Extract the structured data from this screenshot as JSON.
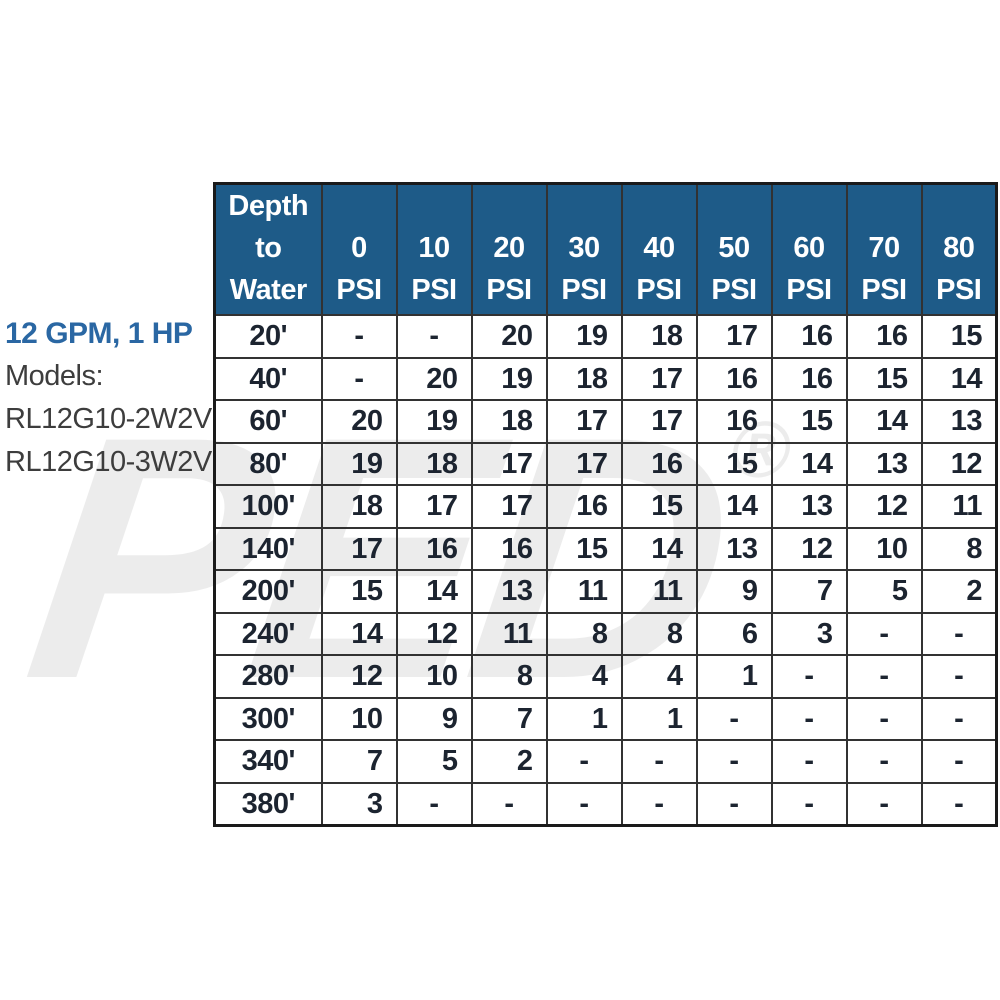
{
  "side_label": {
    "spec": "12 GPM, 1 HP",
    "models_label": "Models:",
    "model1": "RL12G10-2W2V",
    "model2": "RL12G10-3W2V"
  },
  "watermark": {
    "text": "PED",
    "registered": "®"
  },
  "colors": {
    "header_bg": "#1e5b88",
    "header_text": "#ffffff",
    "grid_line": "#323232",
    "cell_text": "#1c2430",
    "spec_text": "#2a67a3",
    "model_text": "#3d3d3d",
    "background": "#ffffff"
  },
  "chart_data": {
    "type": "table",
    "row_header": "Depth to Water",
    "row_header_lines": [
      "Depth",
      "to",
      "Water"
    ],
    "columns": [
      {
        "pressure": "0",
        "unit": "PSI"
      },
      {
        "pressure": "10",
        "unit": "PSI"
      },
      {
        "pressure": "20",
        "unit": "PSI"
      },
      {
        "pressure": "30",
        "unit": "PSI"
      },
      {
        "pressure": "40",
        "unit": "PSI"
      },
      {
        "pressure": "50",
        "unit": "PSI"
      },
      {
        "pressure": "60",
        "unit": "PSI"
      },
      {
        "pressure": "70",
        "unit": "PSI"
      },
      {
        "pressure": "80",
        "unit": "PSI"
      }
    ],
    "rows": [
      {
        "depth": "20'",
        "values": [
          "-",
          "-",
          "20",
          "19",
          "18",
          "17",
          "16",
          "16",
          "15"
        ]
      },
      {
        "depth": "40'",
        "values": [
          "-",
          "20",
          "19",
          "18",
          "17",
          "16",
          "16",
          "15",
          "14"
        ]
      },
      {
        "depth": "60'",
        "values": [
          "20",
          "19",
          "18",
          "17",
          "17",
          "16",
          "15",
          "14",
          "13"
        ]
      },
      {
        "depth": "80'",
        "values": [
          "19",
          "18",
          "17",
          "17",
          "16",
          "15",
          "14",
          "13",
          "12"
        ]
      },
      {
        "depth": "100'",
        "values": [
          "18",
          "17",
          "17",
          "16",
          "15",
          "14",
          "13",
          "12",
          "11"
        ]
      },
      {
        "depth": "140'",
        "values": [
          "17",
          "16",
          "16",
          "15",
          "14",
          "13",
          "12",
          "10",
          "8"
        ]
      },
      {
        "depth": "200'",
        "values": [
          "15",
          "14",
          "13",
          "11",
          "11",
          "9",
          "7",
          "5",
          "2"
        ]
      },
      {
        "depth": "240'",
        "values": [
          "14",
          "12",
          "11",
          "8",
          "8",
          "6",
          "3",
          "-",
          "-"
        ]
      },
      {
        "depth": "280'",
        "values": [
          "12",
          "10",
          "8",
          "4",
          "4",
          "1",
          "-",
          "-",
          "-"
        ]
      },
      {
        "depth": "300'",
        "values": [
          "10",
          "9",
          "7",
          "1",
          "1",
          "-",
          "-",
          "-",
          "-"
        ]
      },
      {
        "depth": "340'",
        "values": [
          "7",
          "5",
          "2",
          "-",
          "-",
          "-",
          "-",
          "-",
          "-"
        ]
      },
      {
        "depth": "380'",
        "values": [
          "3",
          "-",
          "-",
          "-",
          "-",
          "-",
          "-",
          "-",
          "-"
        ]
      }
    ]
  }
}
